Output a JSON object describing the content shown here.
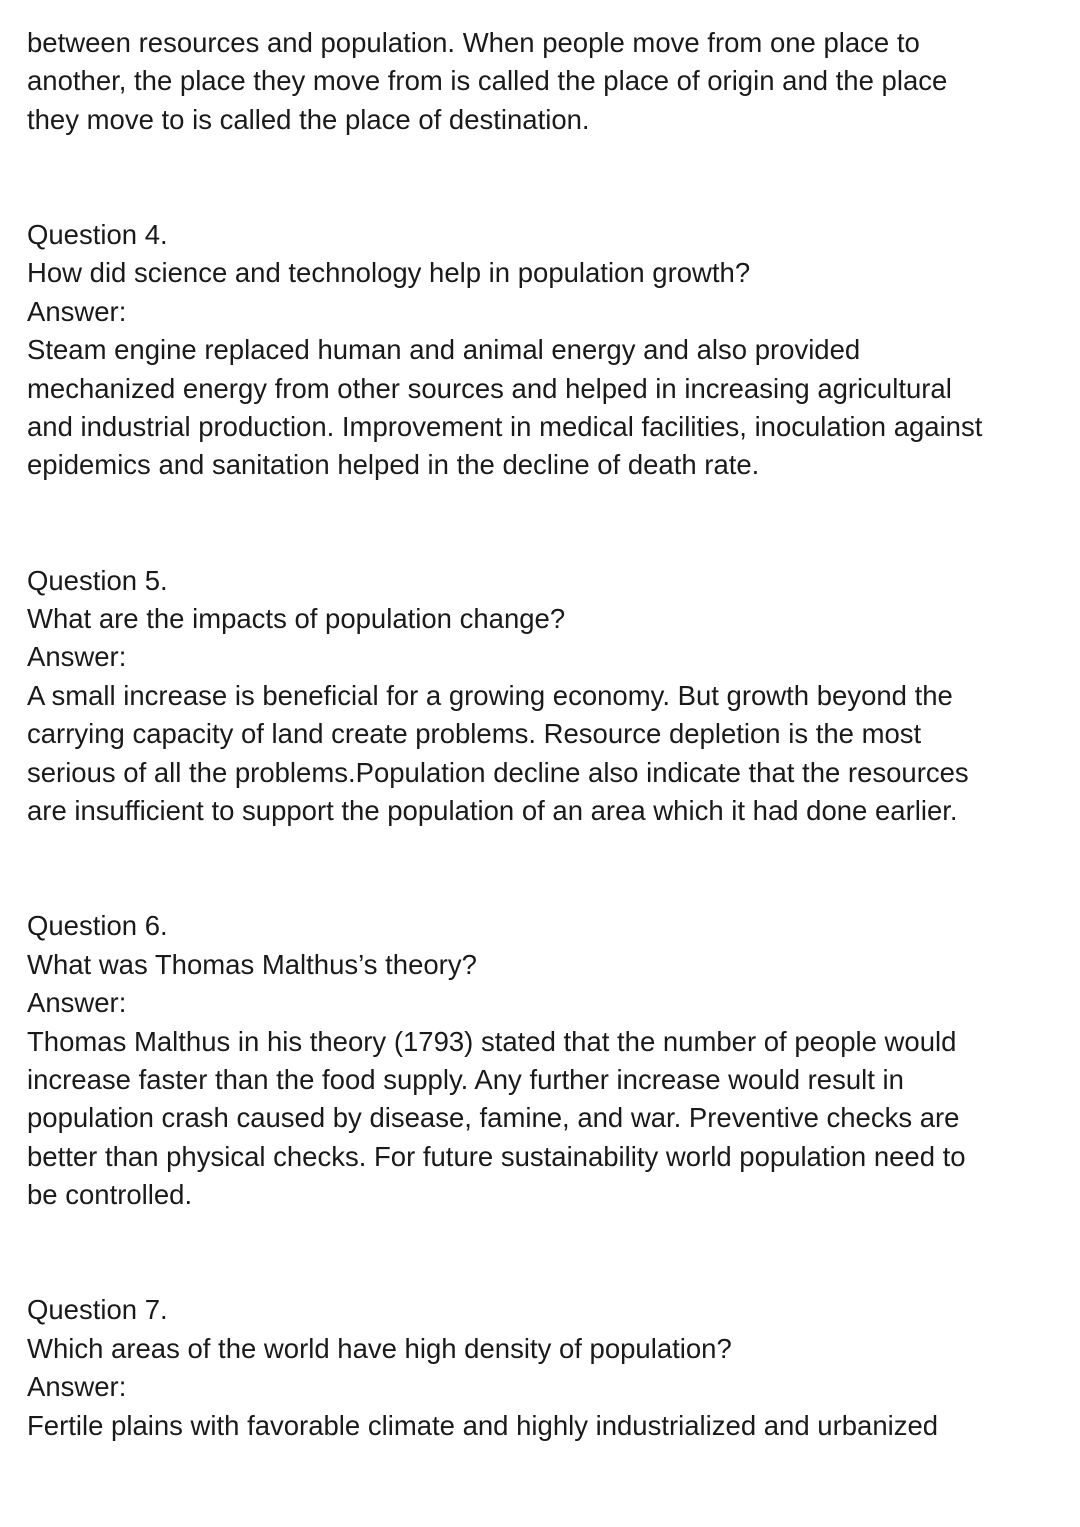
{
  "intro": {
    "lines": [
      "between resources and population. When people move from one place to",
      "another, the place they move from is called the place of origin and the place",
      "they move to is called the place of destination."
    ]
  },
  "qa": [
    {
      "question_label": "Question 4.",
      "question": "How did science and technology help in population growth?",
      "answer_label": "Answer:",
      "answer_lines": [
        "Steam engine replaced human and animal energy and also provided",
        "mechanized energy from other sources and helped in increasing agricultural",
        "and industrial production. Improvement in medical facilities, inoculation against",
        "epidemics and sanitation helped in the decline of death rate."
      ]
    },
    {
      "question_label": "Question 5.",
      "question": "What are the impacts of population change?",
      "answer_label": "Answer:",
      "answer_lines": [
        "A small increase is beneficial for a growing economy. But growth beyond the",
        "carrying capacity of land create problems. Resource depletion is the most",
        "serious of all the problems.Population decline also indicate that the resources",
        "are insufficient to support the population of an area which it had done earlier."
      ]
    },
    {
      "question_label": "Question 6.",
      "question": "What was Thomas Malthus’s theory?",
      "answer_label": "Answer:",
      "answer_lines": [
        "Thomas Malthus in his theory (1793) stated that the number of people would",
        "increase faster than the food supply. Any further increase would result in",
        "population crash caused by disease, famine, and war. Preventive checks are",
        "better than physical checks. For future sustainability world population need to",
        "be controlled."
      ]
    },
    {
      "question_label": "Question 7.",
      "question": "Which areas of the world have high density of population?",
      "answer_label": "Answer:",
      "answer_lines": [
        "Fertile plains with favorable climate and highly industrialized and urbanized"
      ]
    }
  ]
}
